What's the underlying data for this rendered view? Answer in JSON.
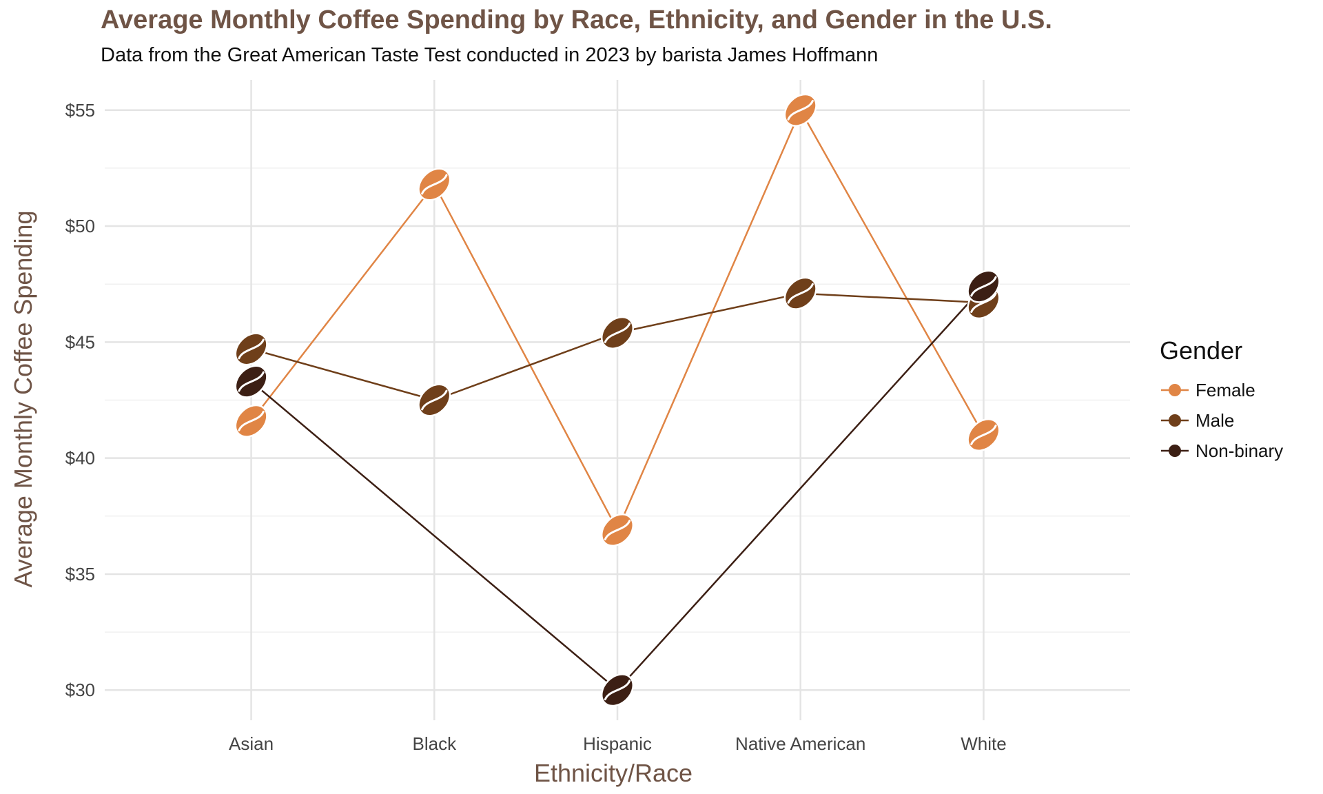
{
  "chart_data": {
    "type": "line",
    "title": "Average Monthly Coffee Spending by Race, Ethnicity, and Gender in the U.S.",
    "subtitle": "Data from the Great American Taste Test conducted in 2023 by barista James Hoffmann",
    "xlabel": "Ethnicity/Race",
    "ylabel": "Average Monthly Coffee Spending",
    "categories": [
      "Asian",
      "Black",
      "Hispanic",
      "Native American",
      "White"
    ],
    "y_ticks": [
      30,
      35,
      40,
      45,
      50,
      55
    ],
    "y_tick_labels": [
      "$30",
      "$35",
      "$40",
      "$45",
      "$50",
      "$55"
    ],
    "ylim": [
      28.7,
      56.3
    ],
    "grid": true,
    "legend_position": "right",
    "legend_title": "Gender",
    "marker": "coffee-bean",
    "series": [
      {
        "name": "Female",
        "color": "#e08545",
        "values": [
          41.6,
          51.8,
          36.9,
          55.0,
          41.0
        ]
      },
      {
        "name": "Male",
        "color": "#6f3f1a",
        "values": [
          44.7,
          42.5,
          45.4,
          47.1,
          46.7
        ]
      },
      {
        "name": "Non-binary",
        "color": "#3c1f14",
        "values": [
          43.3,
          null,
          30.0,
          null,
          47.4
        ]
      }
    ]
  }
}
